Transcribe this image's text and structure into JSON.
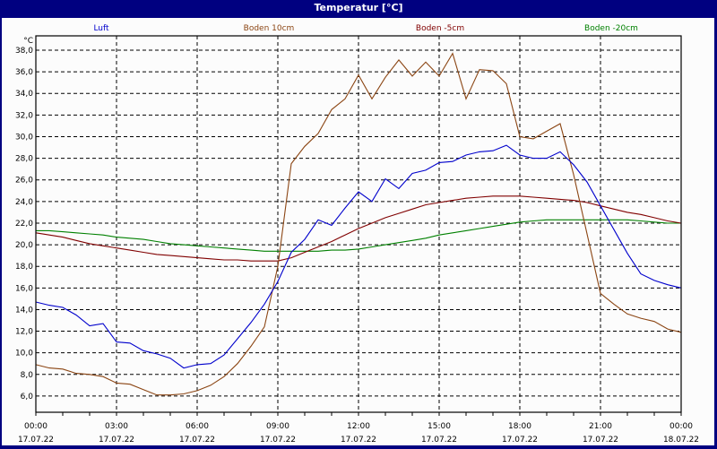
{
  "window": {
    "title": "Temperatur [°C]"
  },
  "legend": [
    {
      "label": "Luft",
      "color": "#0000cc"
    },
    {
      "label": "Boden 10cm",
      "color": "#8b4513"
    },
    {
      "label": "Boden -5cm",
      "color": "#800000"
    },
    {
      "label": "Boden -20cm",
      "color": "#008000"
    }
  ],
  "axes": {
    "y_unit": "°C",
    "y_ticks": [
      "38,0",
      "36,0",
      "34,0",
      "32,0",
      "30,0",
      "28,0",
      "26,0",
      "24,0",
      "22,0",
      "20,0",
      "18,0",
      "16,0",
      "14,0",
      "12,0",
      "10,0",
      "8,0",
      "6,0"
    ],
    "x_ticks": [
      {
        "time": "00:00",
        "date": "17.07.22"
      },
      {
        "time": "03:00",
        "date": "17.07.22"
      },
      {
        "time": "06:00",
        "date": "17.07.22"
      },
      {
        "time": "09:00",
        "date": "17.07.22"
      },
      {
        "time": "12:00",
        "date": "17.07.22"
      },
      {
        "time": "15:00",
        "date": "17.07.22"
      },
      {
        "time": "18:00",
        "date": "17.07.22"
      },
      {
        "time": "21:00",
        "date": "17.07.22"
      },
      {
        "time": "00:00",
        "date": "18.07.22"
      }
    ]
  },
  "chart_data": {
    "type": "line",
    "title": "Temperatur [°C]",
    "xlabel": "",
    "ylabel": "°C",
    "ylim": [
      4.7,
      39.3
    ],
    "xlim_hours": [
      0,
      24
    ],
    "grid": true,
    "legend_position": "top",
    "x": [
      0,
      0.5,
      1,
      1.5,
      2,
      2.5,
      3,
      3.5,
      4,
      4.5,
      5,
      5.5,
      6,
      6.5,
      7,
      7.5,
      8,
      8.5,
      9,
      9.5,
      10,
      10.5,
      11,
      11.5,
      12,
      12.5,
      13,
      13.5,
      14,
      14.5,
      15,
      15.5,
      16,
      16.5,
      17,
      17.5,
      18,
      18.5,
      19,
      19.5,
      20,
      20.5,
      21,
      21.5,
      22,
      22.5,
      23,
      23.5,
      24
    ],
    "series": [
      {
        "name": "Luft",
        "color": "#0000cc",
        "values": [
          14.7,
          14.4,
          14.2,
          13.5,
          12.5,
          12.7,
          11.0,
          10.9,
          10.2,
          9.9,
          9.5,
          8.6,
          8.9,
          9.0,
          9.8,
          11.3,
          12.8,
          14.5,
          16.6,
          19.3,
          20.5,
          22.3,
          21.8,
          23.4,
          24.9,
          24.0,
          26.1,
          25.2,
          26.6,
          26.9,
          27.6,
          27.7,
          28.3,
          28.6,
          28.7,
          29.2,
          28.3,
          28.0,
          28.0,
          28.6,
          27.4,
          25.8,
          23.6,
          21.4,
          19.2,
          17.3,
          16.7,
          16.3,
          16.0
        ]
      },
      {
        "name": "Boden 10cm",
        "color": "#8b4513",
        "values": [
          8.9,
          8.6,
          8.5,
          8.1,
          8.0,
          7.8,
          7.2,
          7.1,
          6.6,
          6.1,
          6.1,
          6.2,
          6.5,
          7.0,
          7.8,
          9.0,
          10.6,
          12.4,
          18.0,
          27.5,
          29.1,
          30.3,
          32.5,
          33.5,
          35.7,
          33.5,
          35.5,
          37.1,
          35.6,
          36.9,
          35.6,
          37.7,
          33.5,
          36.2,
          36.1,
          34.9,
          30.0,
          29.8,
          30.5,
          31.2,
          26.5,
          21.0,
          15.5,
          14.5,
          13.6,
          13.2,
          12.9,
          12.2,
          11.9
        ]
      },
      {
        "name": "Boden -5cm",
        "color": "#800000",
        "values": [
          21.1,
          20.9,
          20.7,
          20.4,
          20.1,
          19.9,
          19.7,
          19.5,
          19.3,
          19.1,
          19.0,
          18.9,
          18.8,
          18.7,
          18.6,
          18.6,
          18.5,
          18.5,
          18.5,
          18.8,
          19.3,
          19.8,
          20.3,
          20.9,
          21.5,
          22.0,
          22.5,
          22.9,
          23.3,
          23.7,
          23.9,
          24.1,
          24.3,
          24.4,
          24.5,
          24.5,
          24.5,
          24.4,
          24.3,
          24.2,
          24.1,
          23.9,
          23.6,
          23.3,
          23.0,
          22.8,
          22.5,
          22.2,
          22.0
        ]
      },
      {
        "name": "Boden -20cm",
        "color": "#008000",
        "values": [
          21.3,
          21.3,
          21.2,
          21.1,
          21.0,
          20.9,
          20.7,
          20.6,
          20.5,
          20.3,
          20.1,
          20.0,
          19.9,
          19.8,
          19.7,
          19.6,
          19.5,
          19.4,
          19.4,
          19.4,
          19.4,
          19.4,
          19.5,
          19.5,
          19.6,
          19.8,
          20.0,
          20.2,
          20.4,
          20.6,
          20.9,
          21.1,
          21.3,
          21.5,
          21.7,
          21.9,
          22.1,
          22.2,
          22.3,
          22.3,
          22.3,
          22.3,
          22.3,
          22.3,
          22.3,
          22.2,
          22.1,
          22.0,
          22.0
        ]
      }
    ]
  }
}
